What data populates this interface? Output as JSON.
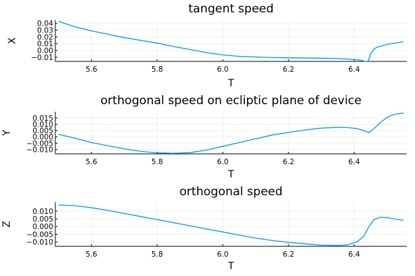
{
  "colors": {
    "series": "#009AF9",
    "grid": "#E6E6E6",
    "axis": "#000000",
    "background": "#FFFFFF"
  },
  "chart_data": [
    {
      "type": "line",
      "title": "tangent speed",
      "xlabel": "T",
      "ylabel": "X",
      "xlim": [
        5.49,
        6.56
      ],
      "ylim": [
        -0.016,
        0.045
      ],
      "xticks": [
        5.6,
        5.8,
        6.0,
        6.2,
        6.4
      ],
      "xtick_labels": [
        "5.6",
        "5.8",
        "6.0",
        "6.2",
        "6.4"
      ],
      "yticks": [
        0.04,
        0.03,
        0.02,
        0.01,
        0.0,
        -0.01
      ],
      "ytick_labels": [
        "0.04",
        "0.03",
        "0.02",
        "0.01",
        "0.00",
        "−0.01"
      ],
      "grid": true,
      "legend": "none",
      "series": [
        {
          "x": [
            5.5,
            5.55,
            5.6,
            5.65,
            5.7,
            5.75,
            5.8,
            5.85,
            5.9,
            5.95,
            6.0,
            6.05,
            6.1,
            6.15,
            6.2,
            6.25,
            6.3,
            6.35,
            6.38,
            6.41,
            6.43,
            6.44,
            6.445,
            6.45,
            6.46,
            6.47,
            6.5,
            6.55
          ],
          "y": [
            0.043,
            0.035,
            0.029,
            0.024,
            0.019,
            0.015,
            0.011,
            0.006,
            0.0015,
            -0.003,
            -0.0065,
            -0.0085,
            -0.0095,
            -0.0103,
            -0.0107,
            -0.011,
            -0.0113,
            -0.0118,
            -0.0125,
            -0.0135,
            -0.0155,
            -0.0162,
            -0.013,
            -0.005,
            0.002,
            0.005,
            0.009,
            0.013
          ]
        }
      ]
    },
    {
      "type": "line",
      "title": "orthogonal speed on ecliptic plane of device",
      "xlabel": "T",
      "ylabel": "Y",
      "xlim": [
        5.49,
        6.56
      ],
      "ylim": [
        -0.0135,
        0.02
      ],
      "xticks": [
        5.6,
        5.8,
        6.0,
        6.2,
        6.4
      ],
      "xtick_labels": [
        "5.6",
        "5.8",
        "6.0",
        "6.2",
        "6.4"
      ],
      "yticks": [
        0.015,
        0.01,
        0.005,
        0.0,
        -0.005,
        -0.01
      ],
      "ytick_labels": [
        "0.015",
        "0.010",
        "0.005",
        "0.000",
        "−0.005",
        "−0.010"
      ],
      "grid": true,
      "legend": "none",
      "series": [
        {
          "x": [
            5.5,
            5.55,
            5.6,
            5.65,
            5.7,
            5.75,
            5.8,
            5.85,
            5.9,
            5.95,
            6.0,
            6.05,
            6.1,
            6.15,
            6.2,
            6.25,
            6.3,
            6.35,
            6.38,
            6.41,
            6.43,
            6.445,
            6.46,
            6.48,
            6.5,
            6.52,
            6.55
          ],
          "y": [
            0.002,
            -0.001,
            -0.0045,
            -0.007,
            -0.0095,
            -0.0115,
            -0.0127,
            -0.013,
            -0.0125,
            -0.0105,
            -0.0075,
            -0.0045,
            -0.0015,
            0.0015,
            0.0035,
            0.0055,
            0.007,
            0.0077,
            0.0075,
            0.0065,
            0.005,
            0.0035,
            0.0065,
            0.0115,
            0.0155,
            0.0178,
            0.019
          ]
        }
      ]
    },
    {
      "type": "line",
      "title": "orthogonal speed",
      "xlabel": "T",
      "ylabel": "Z",
      "xlim": [
        5.49,
        6.56
      ],
      "ylim": [
        -0.0128,
        0.0158
      ],
      "xticks": [
        5.6,
        5.8,
        6.0,
        6.2,
        6.4
      ],
      "xtick_labels": [
        "5.6",
        "5.8",
        "6.0",
        "6.2",
        "6.4"
      ],
      "yticks": [
        0.01,
        0.005,
        0.0,
        -0.005,
        -0.01
      ],
      "ytick_labels": [
        "0.010",
        "0.005",
        "0.000",
        "−0.005",
        "−0.010"
      ],
      "grid": true,
      "legend": "none",
      "series": [
        {
          "x": [
            5.5,
            5.55,
            5.6,
            5.65,
            5.7,
            5.75,
            5.8,
            5.85,
            5.9,
            5.95,
            6.0,
            6.05,
            6.1,
            6.15,
            6.2,
            6.25,
            6.3,
            6.35,
            6.38,
            6.41,
            6.43,
            6.445,
            6.46,
            6.48,
            6.5,
            6.52,
            6.55
          ],
          "y": [
            0.014,
            0.0135,
            0.0122,
            0.0105,
            0.0085,
            0.0065,
            0.0045,
            0.0025,
            0.0005,
            -0.0015,
            -0.0035,
            -0.0055,
            -0.0075,
            -0.009,
            -0.0102,
            -0.0112,
            -0.012,
            -0.0122,
            -0.0118,
            -0.0098,
            -0.006,
            0.0,
            0.0045,
            0.006,
            0.0058,
            0.005,
            0.004
          ]
        }
      ]
    }
  ]
}
